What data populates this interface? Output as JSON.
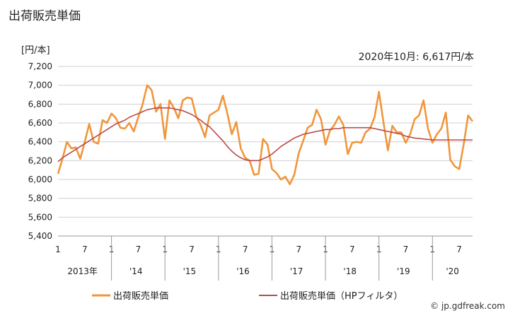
{
  "title": "出荷販売単価",
  "unit_label": "[円/本]",
  "annotation": "2020年10月: 6,617円/本",
  "footer": "© jp.gdfreak.com",
  "chart_data": {
    "type": "line",
    "ylim": [
      5400,
      7200
    ],
    "yticks": [
      5400,
      5600,
      5800,
      6000,
      6200,
      6400,
      6600,
      6800,
      7000,
      7200
    ],
    "ytick_labels": [
      "5,400",
      "5,600",
      "5,800",
      "6,000",
      "6,200",
      "6,400",
      "6,600",
      "6,800",
      "7,000",
      "7,200"
    ],
    "x_start": "2013-01",
    "x_month_ticks": [
      "1",
      "7",
      "1",
      "7",
      "1",
      "7",
      "1",
      "7",
      "1",
      "7",
      "1",
      "7",
      "1",
      "7",
      "1",
      "7"
    ],
    "year_labels": [
      "2013年",
      "'14",
      "'15",
      "'16",
      "'17",
      "'18",
      "'19",
      "'20"
    ],
    "grid": true,
    "legend_position": "bottom",
    "colors": {
      "actual": "#f0963c",
      "hp": "#b94a48"
    },
    "series": [
      {
        "name": "出荷販売単価",
        "values": [
          6060,
          6220,
          6400,
          6330,
          6340,
          6220,
          6400,
          6590,
          6400,
          6380,
          6630,
          6600,
          6700,
          6650,
          6550,
          6540,
          6600,
          6510,
          6660,
          6800,
          7000,
          6950,
          6720,
          6800,
          6430,
          6840,
          6760,
          6650,
          6840,
          6870,
          6860,
          6670,
          6580,
          6450,
          6680,
          6710,
          6740,
          6890,
          6700,
          6480,
          6610,
          6330,
          6230,
          6200,
          6050,
          6060,
          6430,
          6370,
          6110,
          6070,
          6000,
          6030,
          5950,
          6050,
          6280,
          6410,
          6550,
          6580,
          6740,
          6640,
          6370,
          6520,
          6580,
          6670,
          6580,
          6270,
          6390,
          6400,
          6390,
          6500,
          6540,
          6660,
          6930,
          6610,
          6310,
          6570,
          6500,
          6500,
          6390,
          6480,
          6640,
          6680,
          6840,
          6540,
          6390,
          6480,
          6540,
          6710,
          6210,
          6140,
          6110,
          6370,
          6680,
          6617
        ]
      },
      {
        "name": "出荷販売単価（HPフィルタ）",
        "values": [
          6190,
          6230,
          6260,
          6290,
          6320,
          6350,
          6380,
          6410,
          6440,
          6470,
          6500,
          6530,
          6560,
          6590,
          6610,
          6630,
          6660,
          6680,
          6700,
          6720,
          6740,
          6750,
          6760,
          6760,
          6760,
          6760,
          6750,
          6740,
          6730,
          6710,
          6690,
          6660,
          6630,
          6590,
          6560,
          6510,
          6460,
          6410,
          6350,
          6300,
          6260,
          6230,
          6210,
          6200,
          6200,
          6200,
          6220,
          6240,
          6270,
          6310,
          6350,
          6380,
          6410,
          6440,
          6460,
          6480,
          6490,
          6500,
          6510,
          6520,
          6530,
          6530,
          6540,
          6540,
          6550,
          6550,
          6550,
          6550,
          6550,
          6550,
          6550,
          6540,
          6530,
          6520,
          6510,
          6500,
          6490,
          6480,
          6460,
          6450,
          6440,
          6435,
          6430,
          6425,
          6420,
          6420,
          6420,
          6420,
          6420,
          6420,
          6420,
          6420,
          6420,
          6420
        ]
      }
    ]
  }
}
